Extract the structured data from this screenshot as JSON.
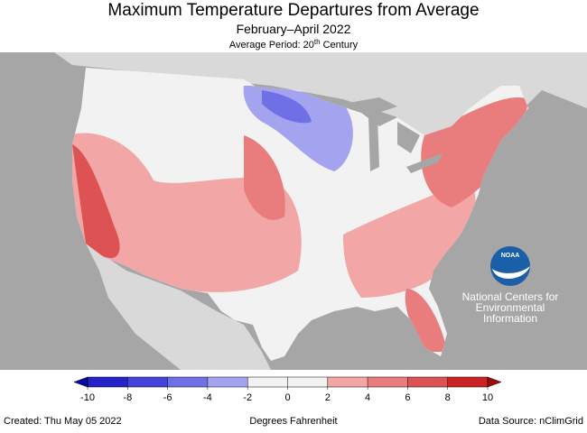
{
  "header": {
    "title": "Maximum Temperature Departures from Average",
    "subtitle": "February–April 2022",
    "average_period": {
      "text": "Average Period: 20",
      "superscript": "th",
      "suffix": " Century"
    }
  },
  "logo": {
    "text": "NOAA"
  },
  "branding": {
    "lines": [
      "National Centers for",
      "Environmental",
      "Information"
    ]
  },
  "colorbar": {
    "ticks": [
      -10,
      -8,
      -6,
      -4,
      -2,
      0,
      2,
      4,
      6,
      8,
      10
    ],
    "colors": [
      "#2323c8",
      "#4444dc",
      "#6f6fe6",
      "#a3a3f0",
      "#f2f2f2",
      "#f2f2f2",
      "#f2a6a6",
      "#e97c7c",
      "#dd5353",
      "#cb2424"
    ],
    "under_color": "#0a0aa0",
    "over_color": "#a00a0a",
    "label": "Degrees Fahrenheit"
  },
  "footer": {
    "created": "Created: Thu May 05 2022",
    "source": "Data Source: nClimGrid"
  }
}
